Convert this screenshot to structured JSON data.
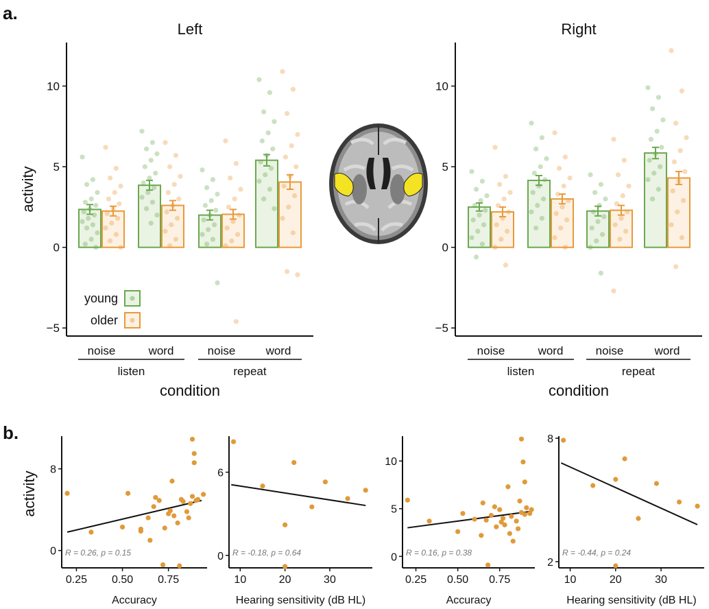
{
  "panel_labels": {
    "a": "a.",
    "b": "b."
  },
  "colors": {
    "young": "#6aa84f",
    "older": "#e8993a",
    "brain_region": "#f3e323",
    "scatter_point": "#e09a3a"
  },
  "brain_image": "axial brain slice with yellow highlighted temporal regions",
  "chart_data": [
    {
      "type": "bar",
      "title": "Left",
      "ylabel": "activity",
      "xlabel": "condition",
      "ylim": [
        -5.5,
        12.7
      ],
      "yticks": [
        -5,
        0,
        5,
        10
      ],
      "ytick_labels": [
        "−5",
        "0",
        "5",
        "10"
      ],
      "categories": [
        "noise",
        "word",
        "noise",
        "word"
      ],
      "groups": [
        {
          "label": "listen",
          "span": [
            0,
            1
          ]
        },
        {
          "label": "repeat",
          "span": [
            2,
            3
          ]
        }
      ],
      "legend": {
        "position": "bottom-left",
        "entries": [
          "young",
          "older"
        ]
      },
      "series": [
        {
          "name": "young",
          "values": [
            2.35,
            3.85,
            2.0,
            5.4
          ],
          "errors": [
            0.3,
            0.3,
            0.3,
            0.35
          ],
          "points": [
            [
              5.6,
              4.2,
              3.9,
              3.4,
              3.0,
              2.8,
              2.6,
              2.4,
              2.2,
              2.0,
              1.8,
              1.6,
              1.4,
              1.2,
              0.9,
              0.5,
              0.2,
              0.0
            ],
            [
              7.2,
              6.5,
              6.1,
              5.8,
              5.4,
              5.0,
              4.6,
              4.3,
              4.0,
              3.7,
              3.4,
              3.1,
              2.8,
              2.4,
              2.0,
              1.5
            ],
            [
              4.8,
              4.2,
              3.7,
              3.3,
              2.9,
              2.6,
              2.3,
              2.0,
              1.7,
              1.4,
              1.1,
              0.8,
              0.5,
              0.2,
              -2.2
            ],
            [
              10.4,
              9.6,
              8.4,
              7.8,
              7.1,
              6.6,
              6.1,
              5.7,
              5.3,
              4.9,
              4.5,
              4.1,
              3.6,
              3.0,
              2.4
            ]
          ]
        },
        {
          "name": "older",
          "values": [
            2.25,
            2.6,
            2.05,
            4.05
          ],
          "errors": [
            0.3,
            0.3,
            0.3,
            0.45
          ],
          "points": [
            [
              6.2,
              4.9,
              4.3,
              3.8,
              3.4,
              3.0,
              2.7,
              2.4,
              2.1,
              1.8,
              1.5,
              1.2,
              0.8,
              0.4,
              0.0
            ],
            [
              6.5,
              5.7,
              5.0,
              4.4,
              3.9,
              3.4,
              3.0,
              2.6,
              2.2,
              1.8,
              1.4,
              1.0,
              0.5,
              0.1
            ],
            [
              6.6,
              5.2,
              4.3,
              3.6,
              3.0,
              2.5,
              2.0,
              1.6,
              1.2,
              0.8,
              0.4,
              0.1,
              -4.6
            ],
            [
              10.9,
              9.8,
              8.3,
              7.0,
              6.3,
              5.6,
              5.0,
              4.4,
              3.8,
              3.2,
              2.5,
              1.8,
              0.9,
              -1.5,
              -1.7
            ]
          ]
        }
      ]
    },
    {
      "type": "bar",
      "title": "Right",
      "xlabel": "condition",
      "ylim": [
        -5.5,
        12.7
      ],
      "yticks": [
        -5,
        0,
        5,
        10
      ],
      "ytick_labels": [
        "−5",
        "0",
        "5",
        "10"
      ],
      "categories": [
        "noise",
        "word",
        "noise",
        "word"
      ],
      "groups": [
        {
          "label": "listen",
          "span": [
            0,
            1
          ]
        },
        {
          "label": "repeat",
          "span": [
            2,
            3
          ]
        }
      ],
      "series": [
        {
          "name": "young",
          "values": [
            2.5,
            4.15,
            2.25,
            5.85
          ],
          "errors": [
            0.25,
            0.3,
            0.3,
            0.35
          ],
          "points": [
            [
              4.7,
              4.1,
              3.6,
              3.2,
              2.9,
              2.6,
              2.3,
              2.0,
              1.7,
              1.4,
              1.0,
              0.6,
              0.2,
              -0.6
            ],
            [
              7.7,
              6.8,
              6.1,
              5.5,
              5.0,
              4.6,
              4.2,
              3.8,
              3.4,
              3.0,
              2.6,
              2.2,
              1.8,
              1.2
            ],
            [
              4.5,
              3.9,
              3.4,
              3.0,
              2.6,
              2.2,
              1.9,
              1.6,
              1.2,
              0.8,
              0.4,
              0.0,
              -1.6
            ],
            [
              9.9,
              9.3,
              8.6,
              7.9,
              7.2,
              6.7,
              6.2,
              5.8,
              5.4,
              5.0,
              4.6,
              4.2,
              3.6,
              3.0
            ]
          ]
        },
        {
          "name": "older",
          "values": [
            2.2,
            3.0,
            2.3,
            4.3
          ],
          "errors": [
            0.3,
            0.3,
            0.3,
            0.4
          ],
          "points": [
            [
              6.2,
              4.4,
              3.9,
              3.4,
              3.0,
              2.6,
              2.2,
              1.8,
              1.4,
              1.0,
              0.5,
              0.0,
              -1.1
            ],
            [
              7.1,
              5.6,
              4.9,
              4.3,
              3.8,
              3.3,
              2.9,
              2.5,
              2.1,
              1.7,
              1.2,
              0.6,
              0.0
            ],
            [
              6.7,
              5.4,
              4.5,
              3.8,
              3.2,
              2.7,
              2.2,
              1.8,
              1.4,
              1.0,
              0.5,
              -2.7
            ],
            [
              12.2,
              9.7,
              7.7,
              6.8,
              6.0,
              5.3,
              4.7,
              4.1,
              3.5,
              2.9,
              2.2,
              1.4,
              0.6,
              -1.2
            ]
          ]
        }
      ]
    },
    {
      "type": "scatter",
      "ylabel": "activity",
      "xlabel": "Accuracy",
      "xlim": [
        0.17,
        0.96
      ],
      "ylim": [
        -1.7,
        11.2
      ],
      "xticks": [
        0.25,
        0.5,
        0.75
      ],
      "xtick_labels": [
        "0.25",
        "0.50",
        "0.75"
      ],
      "yticks": [
        0,
        8
      ],
      "ytick_labels": [
        "0",
        "8"
      ],
      "annotation": "R = 0.26, p = 0.15",
      "fit": [
        [
          0.2,
          1.8
        ],
        [
          0.93,
          4.9
        ]
      ],
      "points": [
        [
          0.2,
          5.6
        ],
        [
          0.33,
          1.8
        ],
        [
          0.5,
          2.3
        ],
        [
          0.53,
          5.6
        ],
        [
          0.6,
          2.1
        ],
        [
          0.6,
          1.9
        ],
        [
          0.64,
          3.2
        ],
        [
          0.65,
          1.0
        ],
        [
          0.67,
          4.3
        ],
        [
          0.68,
          5.2
        ],
        [
          0.7,
          4.9
        ],
        [
          0.72,
          -1.4
        ],
        [
          0.73,
          2.2
        ],
        [
          0.75,
          3.6
        ],
        [
          0.76,
          3.9
        ],
        [
          0.77,
          6.8
        ],
        [
          0.78,
          3.4
        ],
        [
          0.8,
          2.7
        ],
        [
          0.81,
          -1.5
        ],
        [
          0.82,
          5.0
        ],
        [
          0.83,
          4.8
        ],
        [
          0.85,
          3.8
        ],
        [
          0.86,
          3.2
        ],
        [
          0.87,
          4.6
        ],
        [
          0.88,
          5.3
        ],
        [
          0.88,
          10.9
        ],
        [
          0.89,
          9.5
        ],
        [
          0.89,
          8.6
        ],
        [
          0.9,
          4.9
        ],
        [
          0.91,
          5.0
        ],
        [
          0.94,
          5.5
        ]
      ]
    },
    {
      "type": "scatter",
      "xlabel": "Hearing sensitivity (dB HL)",
      "xlim": [
        7.5,
        39.5
      ],
      "ylim": [
        -0.9,
        8.6
      ],
      "xticks": [
        10,
        20,
        30
      ],
      "xtick_labels": [
        "10",
        "20",
        "30"
      ],
      "yticks": [
        0,
        6
      ],
      "ytick_labels": [
        "0",
        "6"
      ],
      "annotation": "R = -0.18, p = 0.64",
      "fit": [
        [
          8,
          5.1
        ],
        [
          38,
          3.6
        ]
      ],
      "points": [
        [
          8.5,
          8.2
        ],
        [
          15,
          5.0
        ],
        [
          20,
          2.2
        ],
        [
          20,
          -0.8
        ],
        [
          22,
          6.7
        ],
        [
          26,
          3.5
        ],
        [
          29,
          5.3
        ],
        [
          34,
          4.1
        ],
        [
          38,
          4.7
        ]
      ]
    },
    {
      "type": "scatter",
      "xlabel": "Accuracy",
      "xlim": [
        0.17,
        0.96
      ],
      "ylim": [
        -1.2,
        12.6
      ],
      "xticks": [
        0.25,
        0.5,
        0.75
      ],
      "xtick_labels": [
        "0.25",
        "0.50",
        "0.75"
      ],
      "yticks": [
        0,
        5,
        10
      ],
      "ytick_labels": [
        "0",
        "5",
        "10"
      ],
      "annotation": "R = 0.16, p = 0.38",
      "fit": [
        [
          0.2,
          3.0
        ],
        [
          0.93,
          4.7
        ]
      ],
      "points": [
        [
          0.2,
          5.9
        ],
        [
          0.33,
          3.7
        ],
        [
          0.5,
          2.6
        ],
        [
          0.53,
          4.5
        ],
        [
          0.6,
          3.9
        ],
        [
          0.64,
          2.2
        ],
        [
          0.65,
          5.6
        ],
        [
          0.67,
          3.8
        ],
        [
          0.68,
          -0.9
        ],
        [
          0.7,
          4.3
        ],
        [
          0.72,
          5.2
        ],
        [
          0.73,
          3.1
        ],
        [
          0.75,
          4.9
        ],
        [
          0.76,
          3.6
        ],
        [
          0.77,
          4.0
        ],
        [
          0.78,
          3.3
        ],
        [
          0.8,
          7.3
        ],
        [
          0.81,
          2.4
        ],
        [
          0.82,
          4.2
        ],
        [
          0.83,
          1.6
        ],
        [
          0.85,
          3.7
        ],
        [
          0.86,
          2.9
        ],
        [
          0.87,
          5.8
        ],
        [
          0.88,
          4.6
        ],
        [
          0.88,
          12.3
        ],
        [
          0.89,
          9.9
        ],
        [
          0.9,
          7.8
        ],
        [
          0.9,
          4.4
        ],
        [
          0.91,
          5.1
        ],
        [
          0.93,
          4.5
        ],
        [
          0.94,
          4.9
        ]
      ]
    },
    {
      "type": "scatter",
      "xlabel": "Hearing sensitivity (dB HL)",
      "xlim": [
        7.5,
        39.5
      ],
      "ylim": [
        1.7,
        8.1
      ],
      "xticks": [
        10,
        20,
        30
      ],
      "xtick_labels": [
        "10",
        "20",
        "30"
      ],
      "yticks": [
        2,
        8
      ],
      "ytick_labels": [
        "2",
        "8"
      ],
      "annotation": "R = -0.44, p = 0.24",
      "fit": [
        [
          8,
          6.8
        ],
        [
          38,
          3.8
        ]
      ],
      "points": [
        [
          8.5,
          7.9
        ],
        [
          15,
          5.7
        ],
        [
          20,
          6.0
        ],
        [
          20,
          1.8
        ],
        [
          22,
          7.0
        ],
        [
          25,
          4.1
        ],
        [
          29,
          5.8
        ],
        [
          34,
          4.9
        ],
        [
          38,
          4.7
        ]
      ]
    }
  ]
}
